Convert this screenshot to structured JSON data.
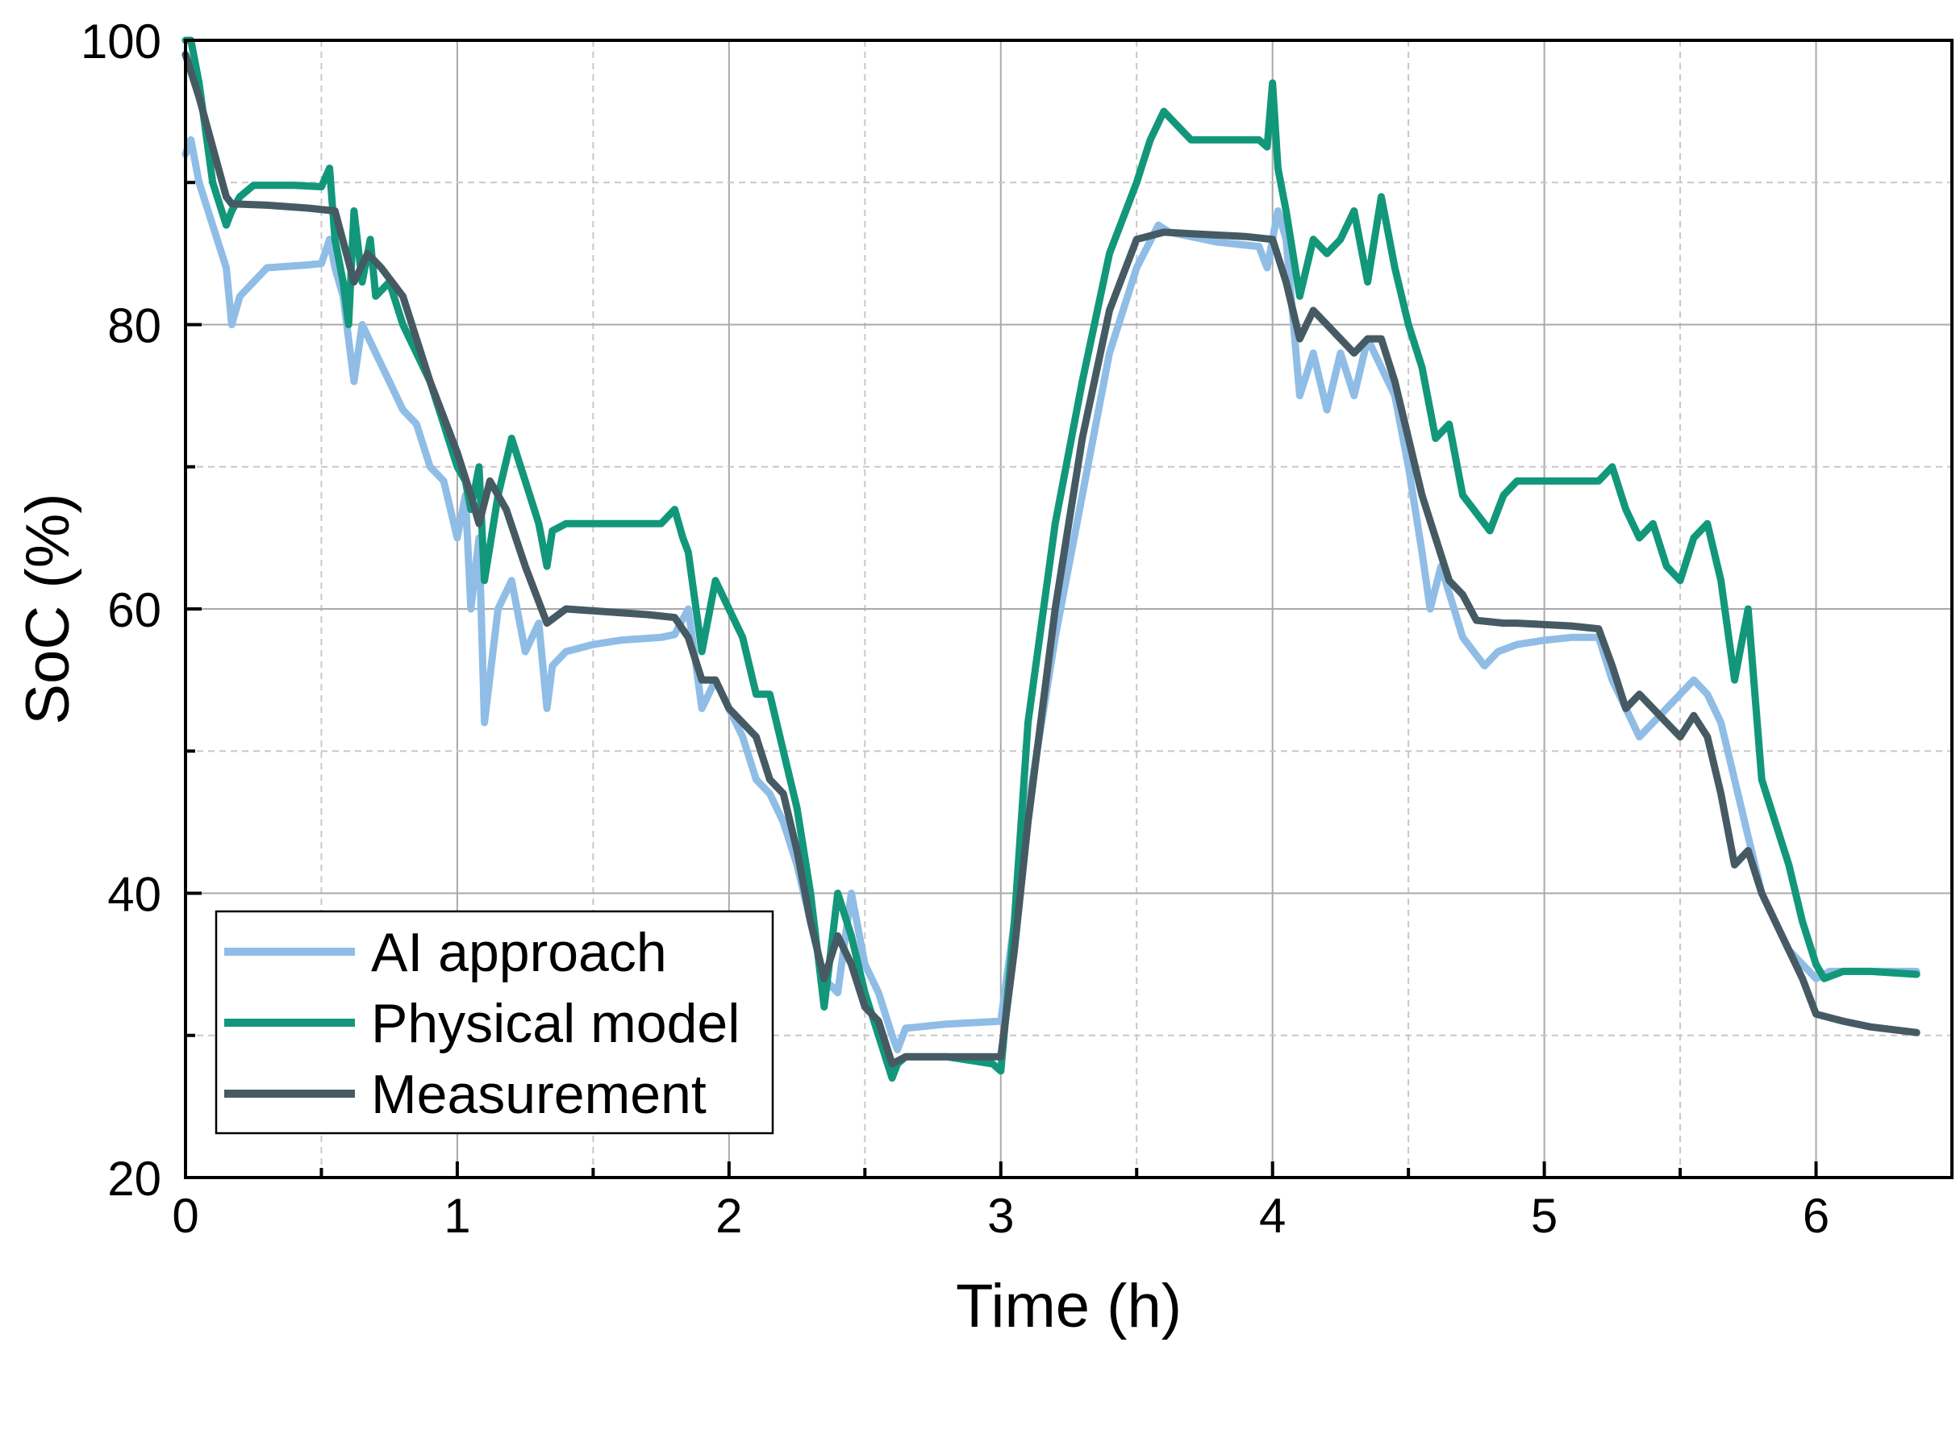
{
  "chart_data": {
    "type": "line",
    "title": "",
    "xlabel": "Time (h)",
    "ylabel": "SoC (%)",
    "xlim": [
      0,
      6.5
    ],
    "ylim": [
      20,
      100
    ],
    "xticks": [
      0,
      1,
      2,
      3,
      4,
      5,
      6
    ],
    "yticks": [
      20,
      40,
      60,
      80,
      100
    ],
    "x_minor_ticks": [
      0.5,
      1.5,
      2.5,
      3.5,
      4.5,
      5.5
    ],
    "y_minor_ticks": [
      30,
      50,
      70,
      90
    ],
    "grid": true,
    "legend_position": "bottom-left",
    "series": [
      {
        "name": "AI approach",
        "color": "#8fbde6",
        "x": [
          0,
          0.02,
          0.05,
          0.15,
          0.17,
          0.2,
          0.3,
          0.45,
          0.5,
          0.53,
          0.55,
          0.58,
          0.62,
          0.65,
          0.7,
          0.75,
          0.8,
          0.85,
          0.9,
          0.95,
          1.0,
          1.03,
          1.05,
          1.08,
          1.1,
          1.15,
          1.2,
          1.25,
          1.3,
          1.33,
          1.35,
          1.4,
          1.5,
          1.6,
          1.75,
          1.8,
          1.85,
          1.9,
          1.95,
          2.0,
          2.05,
          2.1,
          2.15,
          2.2,
          2.25,
          2.3,
          2.35,
          2.4,
          2.45,
          2.5,
          2.55,
          2.6,
          2.62,
          2.65,
          2.8,
          3.0,
          3.05,
          3.1,
          3.2,
          3.3,
          3.4,
          3.5,
          3.58,
          3.62,
          3.8,
          3.95,
          3.98,
          4.02,
          4.05,
          4.1,
          4.15,
          4.2,
          4.25,
          4.3,
          4.35,
          4.4,
          4.45,
          4.5,
          4.55,
          4.58,
          4.62,
          4.7,
          4.78,
          4.83,
          4.9,
          5.0,
          5.1,
          5.2,
          5.25,
          5.3,
          5.35,
          5.4,
          5.45,
          5.5,
          5.55,
          5.6,
          5.65,
          5.7,
          5.75,
          5.8,
          5.85,
          5.9,
          5.95,
          6.0,
          6.05,
          6.2,
          6.37
        ],
        "y": [
          92,
          93,
          90,
          84,
          80,
          82,
          84,
          84.2,
          84.3,
          86,
          84,
          82,
          76,
          80,
          78,
          76,
          74,
          73,
          70,
          69,
          65,
          68,
          60,
          65,
          52,
          60,
          62,
          57,
          59,
          53,
          56,
          57,
          57.5,
          57.8,
          58,
          58.2,
          60,
          53,
          55,
          53,
          51,
          48,
          47,
          45,
          42,
          38,
          34,
          33,
          40,
          35,
          33,
          30,
          29,
          30.5,
          30.8,
          31,
          38,
          46,
          58,
          68,
          78,
          84,
          87,
          86.5,
          85.8,
          85.5,
          84,
          88,
          86,
          75,
          78,
          74,
          78,
          75,
          79,
          77,
          75,
          70,
          64,
          60,
          63,
          58,
          56,
          57,
          57.5,
          57.8,
          58,
          58,
          55,
          53,
          51,
          52,
          53,
          54,
          55,
          54,
          52,
          48,
          44,
          40,
          38,
          36,
          35,
          34,
          34.5,
          34.5,
          34.5
        ]
      },
      {
        "name": "Physical model",
        "color": "#12977a",
        "x": [
          0,
          0.02,
          0.05,
          0.1,
          0.15,
          0.17,
          0.2,
          0.25,
          0.3,
          0.4,
          0.5,
          0.53,
          0.55,
          0.58,
          0.6,
          0.62,
          0.65,
          0.68,
          0.7,
          0.75,
          0.8,
          0.85,
          0.9,
          0.95,
          1.0,
          1.03,
          1.05,
          1.08,
          1.1,
          1.15,
          1.2,
          1.25,
          1.3,
          1.33,
          1.35,
          1.4,
          1.5,
          1.6,
          1.75,
          1.8,
          1.83,
          1.85,
          1.9,
          1.95,
          2.0,
          2.05,
          2.1,
          2.15,
          2.2,
          2.25,
          2.3,
          2.35,
          2.4,
          2.45,
          2.5,
          2.55,
          2.6,
          2.62,
          2.65,
          2.8,
          2.97,
          3.0,
          3.05,
          3.1,
          3.2,
          3.3,
          3.4,
          3.5,
          3.55,
          3.6,
          3.65,
          3.7,
          3.8,
          3.95,
          3.98,
          4.0,
          4.02,
          4.05,
          4.1,
          4.15,
          4.2,
          4.25,
          4.3,
          4.35,
          4.4,
          4.45,
          4.5,
          4.55,
          4.6,
          4.65,
          4.7,
          4.8,
          4.85,
          4.9,
          5.0,
          5.1,
          5.2,
          5.25,
          5.3,
          5.35,
          5.4,
          5.45,
          5.5,
          5.55,
          5.6,
          5.65,
          5.7,
          5.75,
          5.8,
          5.85,
          5.9,
          5.95,
          6.0,
          6.03,
          6.1,
          6.2,
          6.37
        ],
        "y": [
          100,
          100,
          97,
          90,
          87,
          88,
          89,
          89.8,
          89.8,
          89.8,
          89.7,
          91,
          86,
          83,
          80,
          88,
          83,
          86,
          82,
          83,
          80,
          78,
          76,
          73,
          70,
          69,
          67,
          70,
          62,
          68,
          72,
          69,
          66,
          63,
          65.5,
          66,
          66,
          66,
          66,
          67,
          65,
          64,
          57,
          62,
          60,
          58,
          54,
          54,
          50,
          46,
          40,
          32,
          40,
          37,
          33,
          30,
          27,
          28,
          28.5,
          28.5,
          28,
          27.5,
          38,
          52,
          66,
          76,
          85,
          90,
          93,
          95,
          94,
          93,
          93,
          93,
          92.5,
          97,
          91,
          88,
          82,
          86,
          85,
          86,
          88,
          83,
          89,
          84,
          80,
          77,
          72,
          73,
          68,
          65.5,
          68,
          69,
          69,
          69,
          69,
          70,
          67,
          65,
          66,
          63,
          62,
          65,
          66,
          62,
          55,
          60,
          48,
          45,
          42,
          38,
          35,
          34,
          34.5,
          34.5,
          34.3
        ]
      },
      {
        "name": "Measurement",
        "color": "#465a63",
        "x": [
          0,
          0.05,
          0.15,
          0.17,
          0.3,
          0.45,
          0.55,
          0.62,
          0.67,
          0.72,
          0.8,
          0.9,
          1.0,
          1.05,
          1.08,
          1.12,
          1.18,
          1.25,
          1.33,
          1.4,
          1.55,
          1.7,
          1.8,
          1.85,
          1.9,
          1.95,
          2.0,
          2.05,
          2.1,
          2.15,
          2.2,
          2.25,
          2.3,
          2.35,
          2.4,
          2.45,
          2.5,
          2.55,
          2.6,
          2.65,
          2.7,
          2.8,
          2.9,
          3.0,
          3.05,
          3.1,
          3.2,
          3.3,
          3.4,
          3.5,
          3.6,
          3.7,
          3.8,
          3.9,
          4.0,
          4.05,
          4.1,
          4.15,
          4.2,
          4.25,
          4.3,
          4.35,
          4.4,
          4.45,
          4.5,
          4.55,
          4.6,
          4.65,
          4.7,
          4.75,
          4.8,
          4.85,
          4.9,
          5.0,
          5.1,
          5.2,
          5.25,
          5.3,
          5.35,
          5.4,
          5.45,
          5.5,
          5.55,
          5.6,
          5.65,
          5.7,
          5.75,
          5.8,
          5.85,
          5.9,
          5.95,
          6.0,
          6.1,
          6.2,
          6.37
        ],
        "y": [
          99,
          96,
          89,
          88.5,
          88.4,
          88.2,
          88,
          83,
          85,
          84,
          82,
          76,
          71,
          68,
          66,
          69,
          67,
          63,
          59,
          60,
          59.8,
          59.6,
          59.4,
          58,
          55,
          55,
          53,
          52,
          51,
          48,
          47,
          43,
          38,
          34,
          37,
          35,
          32,
          31,
          28,
          28.5,
          28.5,
          28.5,
          28.5,
          28.5,
          36,
          45,
          60,
          72,
          81,
          86,
          86.5,
          86.4,
          86.3,
          86.2,
          86,
          83,
          79,
          81,
          80,
          79,
          78,
          79,
          79,
          76,
          72,
          68,
          65,
          62,
          61,
          59.2,
          59.1,
          59.0,
          59.0,
          58.9,
          58.8,
          58.6,
          56,
          53,
          54,
          53,
          52,
          51,
          52.5,
          51,
          47,
          42,
          43,
          40,
          38,
          36,
          34,
          31.5,
          31,
          30.6,
          30.2
        ]
      }
    ]
  }
}
